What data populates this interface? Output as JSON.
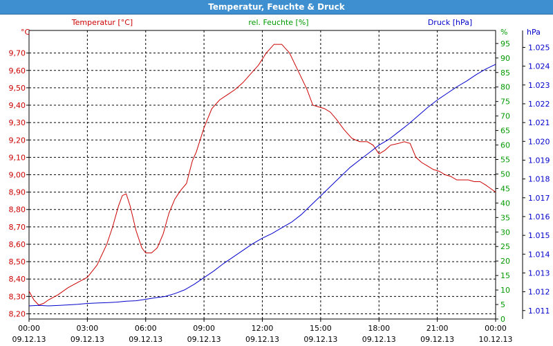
{
  "window": {
    "title": "Temperatur, Feuchte & Druck"
  },
  "colors": {
    "temperature": "#cc0000",
    "humidity": "#009900",
    "pressure": "#0000cc",
    "grid": "#000000",
    "titlebar": "#3d8fd0"
  },
  "chart_data": {
    "type": "line",
    "title": "Temperatur, Feuchte & Druck",
    "grid": true,
    "x_ticks": [
      {
        "time": "00:00",
        "date": "09.12.13"
      },
      {
        "time": "03:00",
        "date": "09.12.13"
      },
      {
        "time": "06:00",
        "date": "09.12.13"
      },
      {
        "time": "09:00",
        "date": "09.12.13"
      },
      {
        "time": "12:00",
        "date": "09.12.13"
      },
      {
        "time": "15:00",
        "date": "09.12.13"
      },
      {
        "time": "18:00",
        "date": "09.12.13"
      },
      {
        "time": "21:00",
        "date": "09.12.13"
      },
      {
        "time": "00:00",
        "date": "10.12.13"
      }
    ],
    "axes": {
      "temperature": {
        "unit": "°C",
        "label": "Temperatur [°C]",
        "ylim": [
          8.17,
          9.83
        ],
        "ticks": [
          "8,20",
          "8,30",
          "8,40",
          "8,50",
          "8,60",
          "8,70",
          "8,80",
          "8,90",
          "9,00",
          "9,10",
          "9,20",
          "9,30",
          "9,40",
          "9,50",
          "9,60",
          "9,70"
        ]
      },
      "humidity": {
        "unit": "%",
        "label": "rel. Feuchte [%]",
        "ylim": [
          0,
          99.5
        ],
        "ticks": [
          "0",
          "5",
          "10",
          "15",
          "20",
          "25",
          "30",
          "35",
          "40",
          "45",
          "50",
          "55",
          "60",
          "65",
          "70",
          "75",
          "80",
          "85",
          "90",
          "95"
        ]
      },
      "pressure": {
        "unit": "hPa",
        "label": "Druck [hPa]",
        "ylim": [
          1010.55,
          1025.9
        ],
        "ticks": [
          "1.011",
          "1.012",
          "1.013",
          "1.014",
          "1.015",
          "1.016",
          "1.017",
          "1.018",
          "1.019",
          "1.020",
          "1.021",
          "1.022",
          "1.023",
          "1.024",
          "1.025"
        ]
      }
    },
    "series": [
      {
        "name": "Temperatur [°C]",
        "axis": "temperature",
        "x": [
          0,
          0.25,
          0.5,
          0.75,
          1.0,
          1.5,
          2.0,
          2.5,
          3.0,
          3.5,
          4.0,
          4.3,
          4.6,
          4.8,
          5.0,
          5.2,
          5.5,
          5.8,
          6.0,
          6.3,
          6.6,
          6.9,
          7.2,
          7.5,
          7.8,
          8.1,
          8.4,
          8.6,
          9.0,
          9.4,
          9.8,
          10.2,
          10.6,
          11.0,
          11.4,
          11.8,
          12.2,
          12.6,
          13.0,
          13.4,
          13.7,
          14.0,
          14.3,
          14.6,
          14.9,
          15.2,
          15.5,
          15.8,
          16.2,
          16.6,
          17.0,
          17.4,
          17.7,
          18.0,
          18.3,
          18.6,
          19.0,
          19.3,
          19.6,
          19.9,
          20.2,
          20.5,
          20.8,
          21.1,
          21.4,
          21.7,
          22.0,
          22.3,
          22.6,
          22.9,
          23.2,
          23.5,
          23.75,
          24.0
        ],
        "values": [
          8.33,
          8.28,
          8.25,
          8.26,
          8.28,
          8.31,
          8.35,
          8.38,
          8.41,
          8.48,
          8.6,
          8.7,
          8.82,
          8.88,
          8.89,
          8.82,
          8.68,
          8.58,
          8.55,
          8.55,
          8.58,
          8.66,
          8.78,
          8.86,
          8.91,
          8.95,
          9.08,
          9.13,
          9.27,
          9.38,
          9.43,
          9.46,
          9.49,
          9.53,
          9.58,
          9.63,
          9.7,
          9.75,
          9.75,
          9.7,
          9.63,
          9.56,
          9.49,
          9.4,
          9.39,
          9.38,
          9.36,
          9.32,
          9.26,
          9.21,
          9.19,
          9.19,
          9.17,
          9.12,
          9.14,
          9.17,
          9.18,
          9.19,
          9.18,
          9.1,
          9.07,
          9.05,
          9.03,
          9.02,
          9.0,
          8.99,
          8.97,
          8.97,
          8.97,
          8.96,
          8.96,
          8.94,
          8.92,
          8.9
        ]
      },
      {
        "name": "Druck [hPa]",
        "axis": "pressure",
        "x": [
          0,
          0.5,
          1,
          1.5,
          2,
          2.5,
          3,
          3.5,
          4,
          4.5,
          5,
          5.5,
          6,
          6.5,
          7,
          7.5,
          8,
          8.5,
          9,
          9.5,
          10,
          10.5,
          11,
          11.5,
          12,
          12.5,
          13,
          13.5,
          14,
          14.5,
          15,
          15.5,
          16,
          16.5,
          17,
          17.5,
          18,
          18.5,
          19,
          19.5,
          20,
          20.5,
          21,
          21.5,
          22,
          22.5,
          23,
          23.5,
          24
        ],
        "values": [
          1011.25,
          1011.28,
          1011.25,
          1011.27,
          1011.3,
          1011.33,
          1011.38,
          1011.4,
          1011.42,
          1011.45,
          1011.5,
          1011.52,
          1011.6,
          1011.68,
          1011.75,
          1011.9,
          1012.1,
          1012.4,
          1012.75,
          1013.1,
          1013.5,
          1013.85,
          1014.2,
          1014.55,
          1014.85,
          1015.1,
          1015.4,
          1015.7,
          1016.1,
          1016.6,
          1017.1,
          1017.6,
          1018.1,
          1018.6,
          1019.0,
          1019.4,
          1019.8,
          1020.1,
          1020.5,
          1020.9,
          1021.35,
          1021.8,
          1022.2,
          1022.55,
          1022.9,
          1023.2,
          1023.55,
          1023.85,
          1024.1
        ]
      }
    ]
  }
}
